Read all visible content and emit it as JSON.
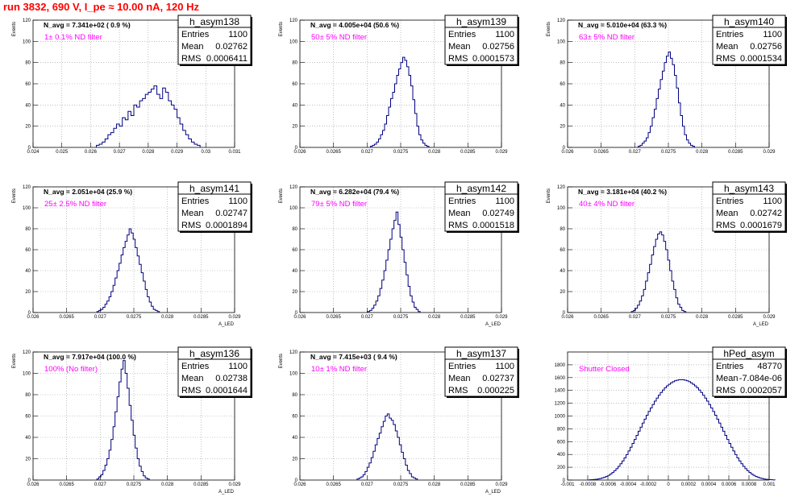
{
  "header": {
    "title": "run 3832,   690 V, I_pe ≈ 10.00 nA, 120 Hz"
  },
  "chart_data": [
    {
      "type": "histogram",
      "name": "h_asym138",
      "navg": "N_avg = 7.341e+02 ( 0.9 %)",
      "filter": "1± 0.1% ND filter",
      "entries": "1100",
      "mean": "0.02762",
      "rms": "0.0006411",
      "xlim": [
        0.024,
        0.031
      ],
      "ylim": [
        0,
        120
      ],
      "xticks": [
        "0.024",
        "0.025",
        "0.026",
        "0.027",
        "0.028",
        "0.029",
        "0.03",
        "0.031"
      ],
      "yticks": [
        "0",
        "20",
        "40",
        "60",
        "80",
        "100",
        "120"
      ],
      "ylabel": "Events",
      "xlabel": "",
      "bins": {
        "start": 0.0262,
        "width": 0.0001,
        "counts": [
          2,
          3,
          5,
          8,
          12,
          14,
          18,
          22,
          20,
          28,
          26,
          34,
          30,
          40,
          38,
          44,
          46,
          50,
          52,
          55,
          58,
          50,
          46,
          56,
          52,
          44,
          40,
          36,
          28,
          22,
          16,
          12,
          8,
          5,
          3,
          2
        ]
      }
    },
    {
      "type": "histogram",
      "name": "h_asym139",
      "navg": "N_avg = 4.005e+04 (50.6 %)",
      "filter": "50± 5% ND filter",
      "entries": "1100",
      "mean": "0.02756",
      "rms": "0.0001573",
      "xlim": [
        0.026,
        0.029
      ],
      "ylim": [
        0,
        120
      ],
      "xticks": [
        "0.026",
        "0.0265",
        "0.027",
        "0.0275",
        "0.028",
        "0.0285",
        "0.029"
      ],
      "yticks": [
        "0",
        "20",
        "40",
        "60",
        "80",
        "100",
        "120"
      ],
      "ylabel": "Events",
      "xlabel": "",
      "bins": {
        "start": 0.02705,
        "width": 3e-05,
        "counts": [
          1,
          2,
          3,
          5,
          8,
          12,
          16,
          22,
          30,
          38,
          46,
          52,
          60,
          68,
          74,
          80,
          85,
          82,
          76,
          68,
          58,
          45,
          32,
          20,
          12,
          7,
          4,
          2,
          1
        ]
      }
    },
    {
      "type": "histogram",
      "name": "h_asym140",
      "navg": "N_avg = 5.010e+04 (63.3 %)",
      "filter": "63± 5% ND filter",
      "entries": "1100",
      "mean": "0.02756",
      "rms": "0.0001534",
      "xlim": [
        0.026,
        0.029
      ],
      "ylim": [
        0,
        120
      ],
      "xticks": [
        "0.026",
        "0.0265",
        "0.027",
        "0.0275",
        "0.028",
        "0.0285",
        "0.029"
      ],
      "yticks": [
        "0",
        "20",
        "40",
        "60",
        "80",
        "100",
        "120"
      ],
      "ylabel": "Events",
      "xlabel": "",
      "bins": {
        "start": 0.02705,
        "width": 3e-05,
        "counts": [
          1,
          2,
          4,
          6,
          9,
          14,
          20,
          28,
          36,
          46,
          55,
          64,
          72,
          80,
          86,
          90,
          84,
          78,
          68,
          56,
          42,
          30,
          20,
          12,
          7,
          4,
          2,
          1
        ]
      }
    },
    {
      "type": "histogram",
      "name": "h_asym141",
      "navg": "N_avg = 2.051e+04 (25.9 %)",
      "filter": "25± 2.5% ND filter",
      "entries": "1100",
      "mean": "0.02747",
      "rms": "0.0001894",
      "xlim": [
        0.026,
        0.029
      ],
      "ylim": [
        0,
        120
      ],
      "xticks": [
        "0.026",
        "0.0265",
        "0.027",
        "0.0275",
        "0.028",
        "0.0285",
        "0.029"
      ],
      "yticks": [
        "0",
        "20",
        "40",
        "60",
        "80",
        "100",
        "120"
      ],
      "ylabel": "Events",
      "xlabel": "A_LED",
      "bins": {
        "start": 0.02695,
        "width": 3e-05,
        "counts": [
          1,
          2,
          3,
          5,
          8,
          11,
          15,
          20,
          26,
          33,
          40,
          47,
          55,
          62,
          68,
          74,
          80,
          76,
          70,
          62,
          54,
          46,
          38,
          30,
          22,
          15,
          10,
          6,
          3,
          2,
          1
        ]
      }
    },
    {
      "type": "histogram",
      "name": "h_asym142",
      "navg": "N_avg = 6.282e+04 (79.4 %)",
      "filter": "79± 5% ND filter",
      "entries": "1100",
      "mean": "0.02749",
      "rms": "0.0001518",
      "xlim": [
        0.026,
        0.029
      ],
      "ylim": [
        0,
        120
      ],
      "xticks": [
        "0.026",
        "0.0265",
        "0.027",
        "0.0275",
        "0.028",
        "0.0285",
        "0.029"
      ],
      "yticks": [
        "0",
        "20",
        "40",
        "60",
        "80",
        "100",
        "120"
      ],
      "ylabel": "Events",
      "xlabel": "A_LED",
      "bins": {
        "start": 0.02701,
        "width": 3e-05,
        "counts": [
          1,
          2,
          4,
          7,
          11,
          16,
          23,
          31,
          40,
          50,
          60,
          70,
          80,
          88,
          96,
          84,
          72,
          60,
          48,
          36,
          25,
          16,
          10,
          5,
          3,
          1
        ]
      }
    },
    {
      "type": "histogram",
      "name": "h_asym143",
      "navg": "N_avg = 3.181e+04 (40.2 %)",
      "filter": "40± 4% ND filter",
      "entries": "1100",
      "mean": "0.02742",
      "rms": "0.0001679",
      "xlim": [
        0.026,
        0.029
      ],
      "ylim": [
        0,
        120
      ],
      "xticks": [
        "0.026",
        "0.0265",
        "0.027",
        "0.0275",
        "0.028",
        "0.0285",
        "0.029"
      ],
      "yticks": [
        "0",
        "20",
        "40",
        "60",
        "80",
        "100",
        "120"
      ],
      "ylabel": "Events",
      "xlabel": "A_LED",
      "bins": {
        "start": 0.02695,
        "width": 3e-05,
        "counts": [
          1,
          2,
          4,
          7,
          11,
          16,
          22,
          30,
          38,
          46,
          55,
          63,
          70,
          75,
          77,
          74,
          68,
          60,
          50,
          40,
          30,
          22,
          14,
          8,
          5,
          2,
          1
        ]
      }
    },
    {
      "type": "histogram",
      "name": "h_asym136",
      "navg": "N_avg = 7.917e+04 (100.0 %)",
      "filter": "100% (No filter)",
      "entries": "1100",
      "mean": "0.02738",
      "rms": "0.0001644",
      "xlim": [
        0.026,
        0.029
      ],
      "ylim": [
        0,
        120
      ],
      "xticks": [
        "0.026",
        "0.0265",
        "0.027",
        "0.0275",
        "0.028",
        "0.0285",
        "0.029"
      ],
      "yticks": [
        "0",
        "20",
        "40",
        "60",
        "80",
        "100",
        "120"
      ],
      "ylabel": "Events",
      "xlabel": "A_LED",
      "bins": {
        "start": 0.02695,
        "width": 3e-05,
        "counts": [
          1,
          3,
          5,
          9,
          14,
          20,
          28,
          38,
          50,
          64,
          78,
          92,
          104,
          112,
          100,
          86,
          70,
          56,
          42,
          30,
          20,
          13,
          8,
          4,
          2,
          1
        ]
      }
    },
    {
      "type": "histogram",
      "name": "h_asym137",
      "navg": "N_avg = 7.415e+03 ( 9.4 %)",
      "filter": "10± 1% ND filter",
      "entries": "1100",
      "mean": "0.02737",
      "rms": "0.000225",
      "xlim": [
        0.026,
        0.029
      ],
      "ylim": [
        0,
        120
      ],
      "xticks": [
        "0.026",
        "0.0265",
        "0.027",
        "0.0275",
        "0.028",
        "0.0285",
        "0.029"
      ],
      "yticks": [
        "0",
        "20",
        "40",
        "60",
        "80",
        "100",
        "120"
      ],
      "ylabel": "Events",
      "xlabel": "A_LED",
      "bins": {
        "start": 0.02685,
        "width": 3e-05,
        "counts": [
          1,
          2,
          3,
          5,
          8,
          12,
          16,
          21,
          27,
          33,
          39,
          44,
          50,
          55,
          60,
          62,
          58,
          56,
          52,
          46,
          40,
          33,
          26,
          20,
          14,
          9,
          6,
          3,
          2,
          1
        ]
      }
    },
    {
      "type": "histogram",
      "name": "hPed_asym",
      "navg": "",
      "filter": "Shutter Closed",
      "entries": "48770",
      "mean": "-7.084e-06",
      "rms": "0.0002057",
      "xlim": [
        -0.001,
        0.001
      ],
      "ylim": [
        0,
        2000
      ],
      "xticks": [
        "-0.001",
        "-0.0008",
        "-0.0006",
        "-0.0004",
        "-0.0002",
        "0",
        "0.0002",
        "0.0004",
        "0.0006",
        "0.0008",
        "0.001"
      ],
      "yticks": [
        "0",
        "200",
        "400",
        "600",
        "800",
        "1000",
        "1200",
        "1400",
        "1600",
        "1800"
      ],
      "ylabel": "",
      "xlabel": "",
      "bins": {
        "start": -0.0008,
        "width": 2e-05,
        "counts": [
          2,
          4,
          6,
          9,
          13,
          18,
          25,
          34,
          45,
          58,
          74,
          94,
          118,
          146,
          178,
          214,
          254,
          298,
          346,
          398,
          454,
          512,
          572,
          634,
          698,
          762,
          826,
          890,
          952,
          1012,
          1070,
          1126,
          1180,
          1232,
          1280,
          1326,
          1368,
          1406,
          1440,
          1470,
          1496,
          1518,
          1536,
          1550,
          1560,
          1566,
          1568,
          1566,
          1560,
          1550,
          1536,
          1518,
          1496,
          1470,
          1440,
          1406,
          1368,
          1326,
          1280,
          1232,
          1180,
          1126,
          1070,
          1012,
          952,
          890,
          826,
          762,
          698,
          634,
          572,
          512,
          454,
          398,
          346,
          298,
          254,
          214,
          178,
          146,
          118,
          94,
          74,
          58,
          45,
          34,
          25,
          18,
          13,
          9,
          6,
          4,
          2
        ]
      }
    }
  ],
  "stats_labels": {
    "entries": "Entries",
    "mean": "Mean",
    "rms": "RMS"
  }
}
